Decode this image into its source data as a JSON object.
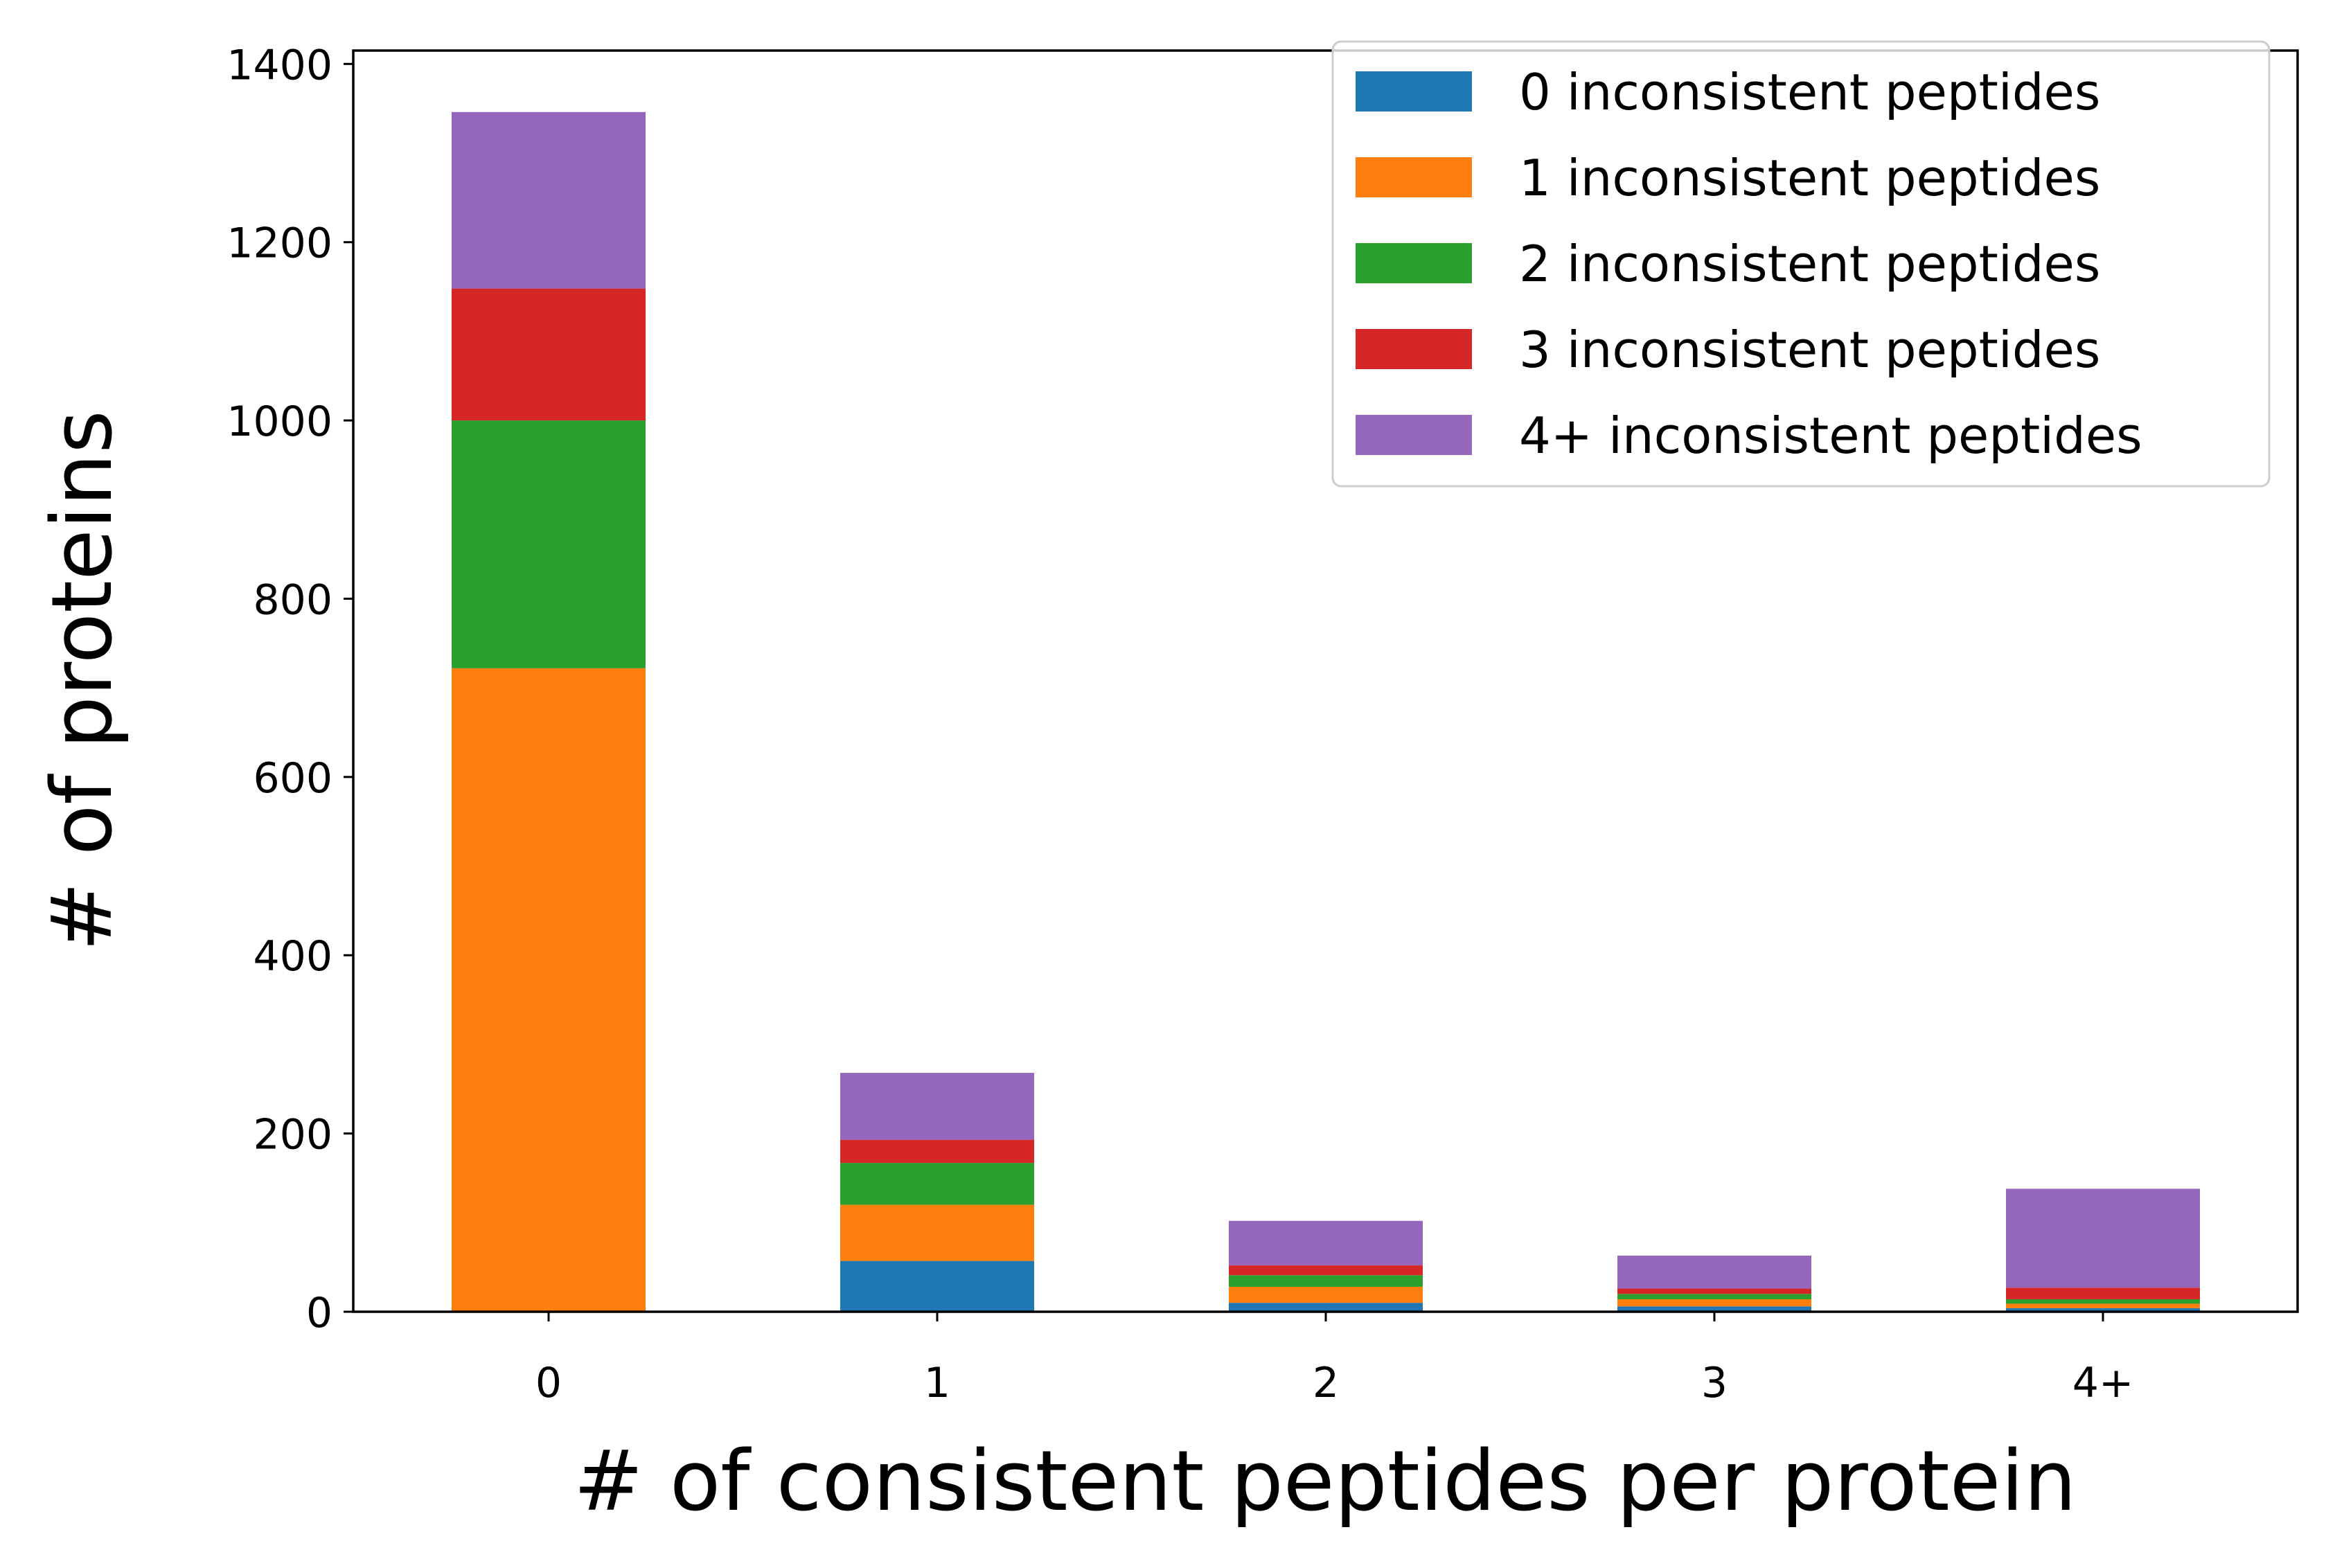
{
  "chart_data": {
    "type": "bar",
    "stacked": true,
    "categories": [
      "0",
      "1",
      "2",
      "3",
      "4+"
    ],
    "series": [
      {
        "name": "0 inconsistent peptides",
        "color": "#1f77b4",
        "values": [
          0,
          57,
          10,
          6,
          4
        ]
      },
      {
        "name": "1 inconsistent peptides",
        "color": "#ff7f0e",
        "values": [
          722,
          63,
          18,
          8,
          5
        ]
      },
      {
        "name": "2 inconsistent peptides",
        "color": "#2ca02c",
        "values": [
          278,
          47,
          13,
          6,
          5
        ]
      },
      {
        "name": "3 inconsistent peptides",
        "color": "#d62728",
        "values": [
          148,
          26,
          11,
          6,
          13
        ]
      },
      {
        "name": "4+ inconsistent peptides",
        "color": "#9467bd",
        "values": [
          198,
          75,
          50,
          37,
          111
        ]
      }
    ],
    "xlabel": "# of consistent peptides per protein",
    "ylabel": "# of proteins",
    "ylim": [
      0,
      1415
    ],
    "yticks": [
      0,
      200,
      400,
      600,
      800,
      1000,
      1200,
      1400
    ],
    "grid": false,
    "legend": "top-right"
  }
}
